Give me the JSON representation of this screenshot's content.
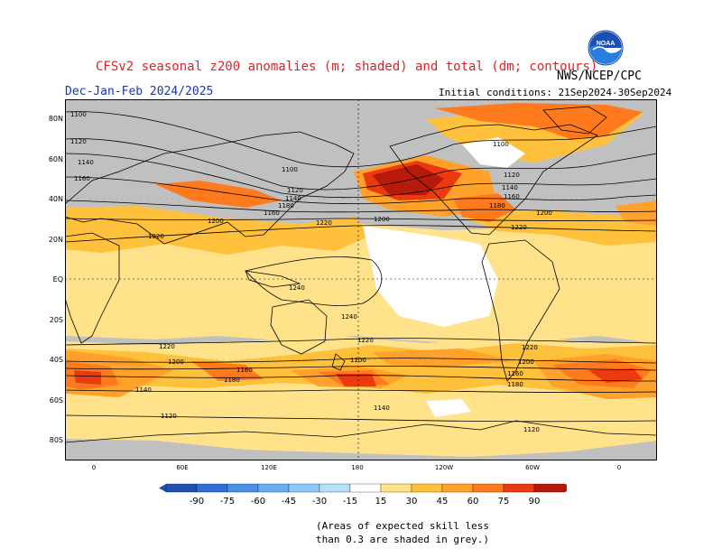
{
  "header": {
    "title": "CFSv2 seasonal z200 anomalies (m; shaded) and total (dm; contours)",
    "season": "Dec-Jan-Feb 2024/2025",
    "initial_conditions": "Initial conditions: 21Sep2024-30Sep2024",
    "agency": "NWS/NCEP/CPC",
    "logo_text": "NOAA"
  },
  "map": {
    "lat_labels": [
      "80N",
      "60N",
      "40N",
      "20N",
      "EQ",
      "20S",
      "40S",
      "60S",
      "80S"
    ],
    "lon_labels": [
      "0",
      "60E",
      "120E",
      "180",
      "120W",
      "60W",
      "0"
    ],
    "contour_labels": [
      "1100",
      "1120",
      "1140",
      "1160",
      "1180",
      "1200",
      "1220",
      "1240"
    ],
    "colors": {
      "background_grey": "#c0c0c0",
      "neutral": "#ffffff",
      "pos_15": "#ffe28a",
      "pos_30": "#ffc03b",
      "pos_45": "#ffa12a",
      "pos_60": "#ff7a1c",
      "pos_75": "#ec3a10",
      "pos_90": "#b51a0a"
    }
  },
  "colorbar": {
    "labels": [
      "-90",
      "-75",
      "-60",
      "-45",
      "-30",
      "-15",
      "15",
      "30",
      "45",
      "60",
      "75",
      "90"
    ],
    "colors": [
      "#1f4fb0",
      "#2f6fd8",
      "#4a8fe8",
      "#6aaef0",
      "#8ec8f6",
      "#b6e0fa",
      "#ffffff",
      "#ffe28a",
      "#ffc03b",
      "#ffa12a",
      "#ff7a1c",
      "#ec3a10",
      "#b51a0a"
    ]
  },
  "note": {
    "line1": "(Areas of expected skill less",
    "line2": "than 0.3 are shaded in grey.)"
  }
}
